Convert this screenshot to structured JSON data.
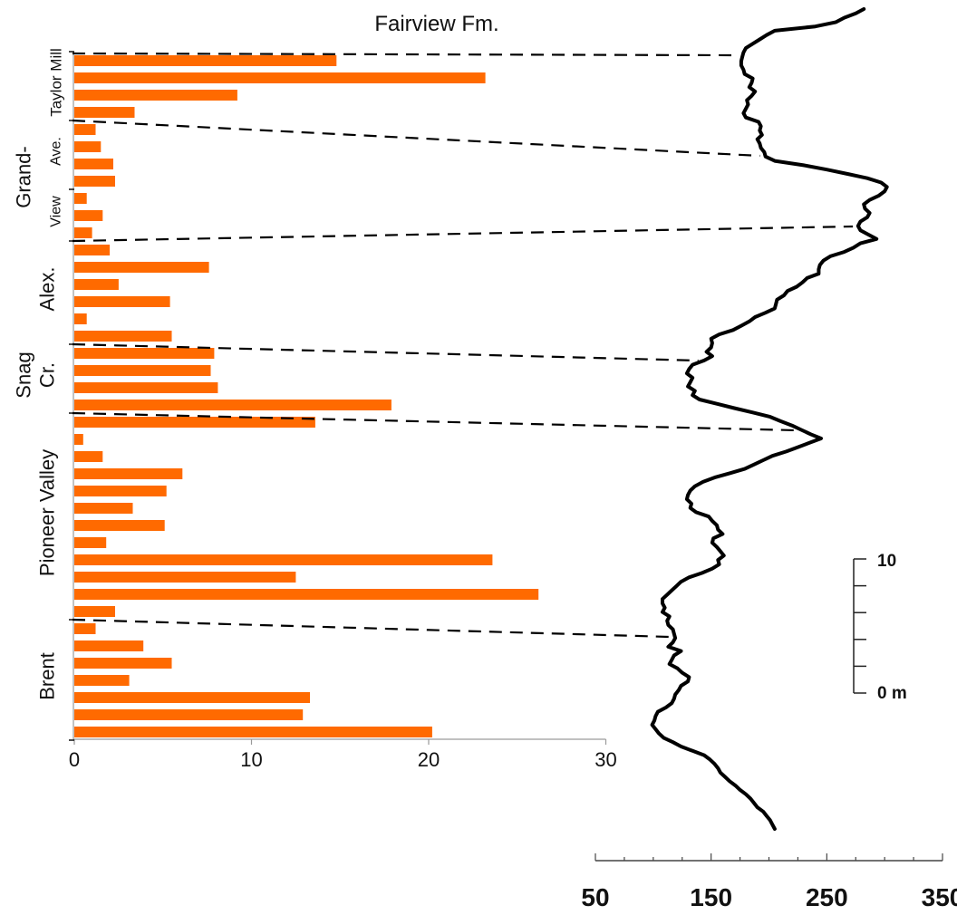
{
  "chart_data": {
    "type": "bar",
    "orientation": "horizontal",
    "title": "Fairview Fm.",
    "x_ticks": [
      "0",
      "10",
      "20",
      "30"
    ],
    "xlim": [
      0,
      30
    ],
    "formations": [
      {
        "label": "Taylor Mill",
        "values": [
          14.8,
          23.2,
          9.2,
          3.4
        ]
      },
      {
        "label": "Ave.",
        "values": [
          1.2,
          1.5,
          2.2,
          2.3
        ]
      },
      {
        "label": "View",
        "values": [
          0.7,
          1.6,
          1.0
        ]
      },
      {
        "label": "Alex.",
        "values": [
          2.0,
          7.6,
          2.5,
          5.4,
          0.7,
          5.5
        ]
      },
      {
        "label": "Cr.",
        "values": [
          7.9,
          7.7,
          8.1,
          17.9
        ]
      },
      {
        "label": "Pioneer Valley",
        "values": [
          13.6,
          0.5,
          1.6,
          6.1,
          5.2,
          3.3,
          5.1,
          1.8,
          23.6,
          12.5,
          26.2,
          2.3
        ]
      },
      {
        "label": "Brent",
        "values": [
          1.2,
          3.9,
          5.5,
          3.1,
          13.3,
          12.9,
          20.2
        ]
      }
    ],
    "group_labels": [
      "Grand-",
      "Snag"
    ],
    "log_scale_labels": [
      "50",
      "150",
      "250",
      "350"
    ],
    "log_scale_range": [
      50,
      350
    ],
    "log_curve_values": [
      282,
      275,
      265,
      258,
      240,
      205,
      198,
      192,
      186,
      180,
      178,
      177,
      176,
      176,
      178,
      179,
      186,
      185,
      183,
      188,
      185,
      181,
      182,
      180,
      178,
      180,
      191,
      193,
      192,
      194,
      190,
      192,
      193,
      196,
      197,
      205,
      230,
      250,
      268,
      285,
      297,
      302,
      300,
      295,
      287,
      282,
      283,
      287,
      285,
      279,
      277,
      279,
      286,
      293,
      279,
      273,
      265,
      253,
      247,
      244,
      243,
      243,
      233,
      229,
      224,
      216,
      213,
      207,
      206,
      205,
      197,
      188,
      183,
      176,
      169,
      157,
      150,
      151,
      150,
      146,
      151,
      144,
      134,
      131,
      129,
      134,
      132,
      130,
      136,
      134,
      140,
      155,
      170,
      186,
      201,
      210,
      220,
      228,
      236,
      245,
      235,
      225,
      215,
      203,
      195,
      187,
      179,
      166,
      153,
      143,
      136,
      132,
      130,
      129,
      133,
      132,
      137,
      148,
      151,
      155,
      156,
      160,
      152,
      151,
      155,
      158,
      161,
      156,
      157,
      151,
      142,
      131,
      124,
      120,
      116,
      112,
      108,
      108,
      110,
      108,
      114,
      112,
      113,
      117,
      118,
      119,
      117,
      113,
      124,
      118,
      116,
      114,
      121,
      125,
      131,
      130,
      124,
      122,
      119,
      118,
      116,
      111,
      104,
      102,
      101,
      99,
      102,
      105,
      109,
      117,
      124,
      134,
      144,
      149,
      153,
      156,
      158,
      162,
      166,
      171,
      175,
      180,
      184,
      187,
      190,
      195,
      198,
      201,
      203,
      205
    ],
    "depth_scale_labels": [
      "10",
      "0 m"
    ]
  }
}
